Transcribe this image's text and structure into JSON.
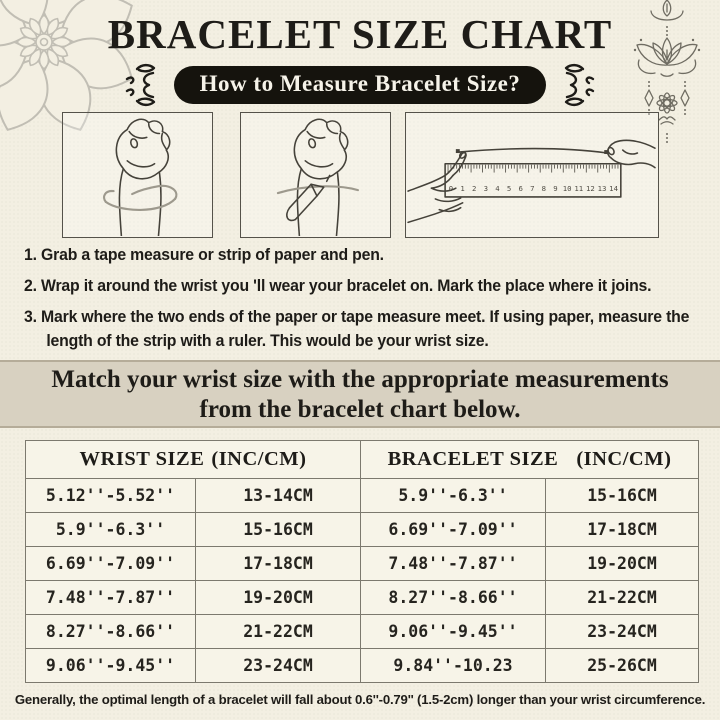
{
  "title": "BRACELET SIZE CHART",
  "badge": {
    "label": "How to Measure Bracelet Size?"
  },
  "instructions": {
    "steps": [
      {
        "num": "1.",
        "text": "Grab a tape measure or strip of paper and pen."
      },
      {
        "num": "2.",
        "text": "Wrap it around the wrist you 'll wear your bracelet on. Mark the place where it joins."
      },
      {
        "num": "3.",
        "text": "Mark where the two ends of the paper or tape measure meet. If using paper, measure the length of the strip with a ruler. This would be your wrist size."
      }
    ]
  },
  "banner": {
    "line1": "Match your wrist size with the appropriate measurements",
    "line2": "from the bracelet chart below."
  },
  "table": {
    "headers": [
      {
        "label": "WRIST SIZE",
        "unit": "(INC/CM)"
      },
      {
        "label": "BRACELET SIZE",
        "unit": "(INC/CM)"
      }
    ],
    "rows": [
      [
        "5.12''-5.52''",
        "13-14CM",
        "5.9''-6.3''",
        "15-16CM"
      ],
      [
        "5.9''-6.3''",
        "15-16CM",
        "6.69''-7.09''",
        "17-18CM"
      ],
      [
        "6.69''-7.09''",
        "17-18CM",
        "7.48''-7.87''",
        "19-20CM"
      ],
      [
        "7.48''-7.87''",
        "19-20CM",
        "8.27''-8.66''",
        "21-22CM"
      ],
      [
        "8.27''-8.66''",
        "21-22CM",
        "9.06''-9.45''",
        "23-24CM"
      ],
      [
        "9.06''-9.45''",
        "23-24CM",
        "9.84''-10.23",
        "25-26CM"
      ]
    ]
  },
  "footer_note": "Generally, the optimal length of a bracelet will fall about 0.6''-0.79'' (1.5-2cm) longer than your wrist circumference.",
  "illustrations": {
    "ruler_numbers": [
      "0",
      "1",
      "2",
      "3",
      "4",
      "5",
      "6",
      "7",
      "8",
      "9",
      "10",
      "11",
      "12",
      "13",
      "14"
    ],
    "items": [
      {
        "icon": "hand-tape-illustration"
      },
      {
        "icon": "hand-pen-illustration"
      },
      {
        "icon": "ruler-hands-illustration"
      }
    ]
  },
  "icons": {
    "corner": "mandala-icon",
    "hanging": "lotus-ornament-icon",
    "badge_left": "flourish-left-icon",
    "badge_right": "flourish-right-icon"
  },
  "colors": {
    "bg": "#f3efe2",
    "ink": "#1e1c18",
    "banner_bg": "#d8d1c1",
    "banner_line": "#b5ac99",
    "badge_bg": "#15130d",
    "badge_text": "#f6f3e9",
    "table_border": "#7c796e",
    "cell_bg": "#f7f4e8",
    "line_art": "#45423a",
    "tape": "#9d998d",
    "ornament": "#6f6c62",
    "mandala": "#c1beb4"
  }
}
